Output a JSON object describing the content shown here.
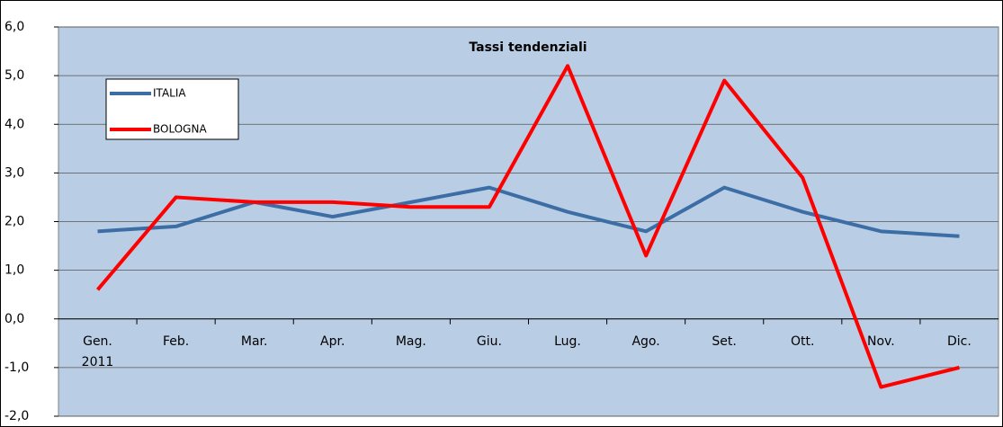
{
  "chart_data": {
    "type": "line",
    "title": "Tassi tendenziali",
    "categories": [
      "Gen.\n2011",
      "Feb.",
      "Mar.",
      "Apr.",
      "Mag.",
      "Giu.",
      "Lug.",
      "Ago.",
      "Set.",
      "Ott.",
      "Nov.",
      "Dic."
    ],
    "series": [
      {
        "name": "ITALIA",
        "color": "#3c6ea5",
        "values": [
          1.8,
          1.9,
          2.4,
          2.1,
          2.4,
          2.7,
          2.2,
          1.8,
          2.7,
          2.2,
          1.8,
          1.7
        ]
      },
      {
        "name": "BOLOGNA",
        "color": "#ff0000",
        "values": [
          0.6,
          2.5,
          2.4,
          2.4,
          2.3,
          2.3,
          5.2,
          1.3,
          4.9,
          2.9,
          -1.4,
          -1.0
        ]
      }
    ],
    "ylim": [
      -2,
      6
    ],
    "yticks": [
      {
        "value": -2,
        "label": "-2,0"
      },
      {
        "value": -1,
        "label": "-1,0"
      },
      {
        "value": 0,
        "label": "0,0"
      },
      {
        "value": 1,
        "label": "1,0"
      },
      {
        "value": 2,
        "label": "2,0"
      },
      {
        "value": 3,
        "label": "3,0"
      },
      {
        "value": 4,
        "label": "4,0"
      },
      {
        "value": 5,
        "label": "5,0"
      },
      {
        "value": 6,
        "label": "6,0"
      }
    ],
    "grid": true,
    "legend": "upper left"
  }
}
